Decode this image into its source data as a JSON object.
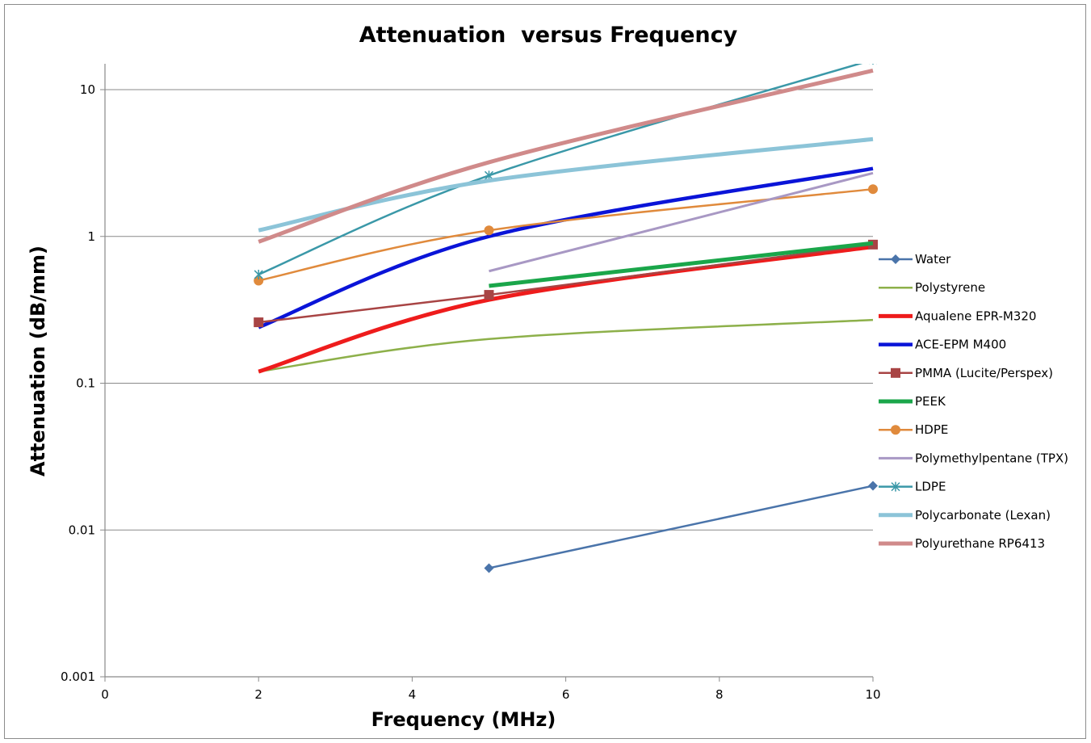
{
  "chart_data": {
    "type": "scatter",
    "title": "Attenuation  versus Frequency",
    "xlabel": "Frequency (MHz)",
    "ylabel": "Attenuation (dB/mm)",
    "xlim": [
      0,
      10
    ],
    "ylim": [
      0.001,
      15
    ],
    "yscale": "log",
    "x_ticks": [
      "0",
      "2",
      "4",
      "6",
      "8",
      "10"
    ],
    "y_ticks": [
      "0.001",
      "0.01",
      "0.1",
      "1",
      "10"
    ],
    "grid": "horizontal",
    "legend_position": "right",
    "series": [
      {
        "name": "Water",
        "color": "#4a74aa",
        "marker": "diamond",
        "width": 2.5,
        "smooth": false,
        "points": [
          [
            5,
            0.0055
          ],
          [
            10,
            0.02
          ]
        ]
      },
      {
        "name": "Polystyrene",
        "color": "#8db04a",
        "marker": "none",
        "width": 2.5,
        "smooth": true,
        "points": [
          [
            2,
            0.12
          ],
          [
            5,
            0.2
          ],
          [
            10,
            0.27
          ]
        ]
      },
      {
        "name": "Aqualene EPR-M320",
        "color": "#ee1c1c",
        "marker": "none",
        "width": 5,
        "smooth": true,
        "points": [
          [
            2,
            0.12
          ],
          [
            5,
            0.37
          ],
          [
            10,
            0.85
          ]
        ]
      },
      {
        "name": "ACE-EPM M400",
        "color": "#0a14d8",
        "marker": "none",
        "width": 4.5,
        "smooth": true,
        "points": [
          [
            2,
            0.24
          ],
          [
            5,
            1.0
          ],
          [
            10,
            2.9
          ]
        ]
      },
      {
        "name": "PMMA (Lucite/Perspex)",
        "color": "#a84444",
        "marker": "square",
        "width": 2.5,
        "smooth": false,
        "points": [
          [
            2,
            0.26
          ],
          [
            5,
            0.4
          ],
          [
            10,
            0.88
          ]
        ]
      },
      {
        "name": "PEEK",
        "color": "#1aa64a",
        "marker": "none",
        "width": 5,
        "smooth": false,
        "points": [
          [
            5,
            0.46
          ],
          [
            10,
            0.9
          ]
        ]
      },
      {
        "name": "HDPE",
        "color": "#e08a3c",
        "marker": "circle",
        "width": 2.5,
        "smooth": true,
        "points": [
          [
            2,
            0.5
          ],
          [
            5,
            1.1
          ],
          [
            10,
            2.1
          ]
        ]
      },
      {
        "name": "Polymethylpentane (TPX)",
        "color": "#a898c4",
        "marker": "none",
        "width": 3,
        "smooth": false,
        "points": [
          [
            5,
            0.58
          ],
          [
            10,
            2.7
          ]
        ]
      },
      {
        "name": "LDPE",
        "color": "#3a98a8",
        "marker": "asterisk",
        "width": 2.5,
        "smooth": true,
        "points": [
          [
            2,
            0.55
          ],
          [
            5,
            2.6
          ],
          [
            10,
            16
          ]
        ]
      },
      {
        "name": "Polycarbonate (Lexan)",
        "color": "#8cc4d8",
        "marker": "none",
        "width": 5,
        "smooth": true,
        "points": [
          [
            2,
            1.1
          ],
          [
            5,
            2.4
          ],
          [
            10,
            4.6
          ]
        ]
      },
      {
        "name": "Polyurethane RP6413",
        "color": "#d08a8a",
        "marker": "none",
        "width": 5,
        "smooth": true,
        "points": [
          [
            2,
            0.92
          ],
          [
            5,
            3.2
          ],
          [
            10,
            13.5
          ]
        ]
      }
    ]
  }
}
